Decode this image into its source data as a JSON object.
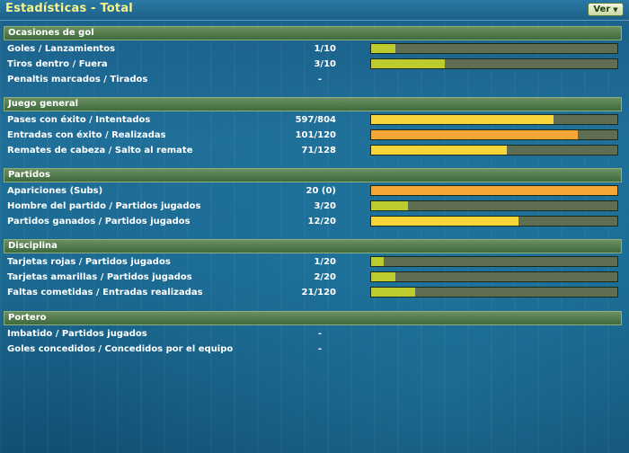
{
  "title": "Estadísticas - Total",
  "ver_button": {
    "label": "Ver",
    "icon": "chevron-down-icon"
  },
  "sections": [
    {
      "header": "Ocasiones de gol",
      "rows": [
        {
          "label": "Goles / Lanzamientos",
          "value": "1/10",
          "fill_pct": 10,
          "color": "#bccb2e"
        },
        {
          "label": "Tiros dentro / Fuera",
          "value": "3/10",
          "fill_pct": 30,
          "color": "#bccb2e"
        },
        {
          "label": "Penaltis marcados / Tirados",
          "value": "-",
          "fill_pct": null
        }
      ]
    },
    {
      "header": "Juego general",
      "rows": [
        {
          "label": "Pases con éxito / Intentados",
          "value": "597/804",
          "fill_pct": 74,
          "color": "#f6d63a"
        },
        {
          "label": "Entradas con éxito / Realizadas",
          "value": "101/120",
          "fill_pct": 84,
          "color": "#f6a634"
        },
        {
          "label": "Remates de cabeza / Salto al remate",
          "value": "71/128",
          "fill_pct": 55,
          "color": "#f6d63a"
        }
      ]
    },
    {
      "header": "Partidos",
      "rows": [
        {
          "label": "Apariciones (Subs)",
          "value": "20 (0)",
          "fill_pct": 100,
          "color": "#f6a634"
        },
        {
          "label": "Hombre del partido / Partidos jugados",
          "value": "3/20",
          "fill_pct": 15,
          "color": "#bccb2e"
        },
        {
          "label": "Partidos ganados / Partidos jugados",
          "value": "12/20",
          "fill_pct": 60,
          "color": "#f6d63a"
        }
      ]
    },
    {
      "header": "Disciplina",
      "rows": [
        {
          "label": "Tarjetas rojas / Partidos jugados",
          "value": "1/20",
          "fill_pct": 5,
          "color": "#bccb2e"
        },
        {
          "label": "Tarjetas amarillas / Partidos jugados",
          "value": "2/20",
          "fill_pct": 10,
          "color": "#bccb2e"
        },
        {
          "label": "Faltas cometidas / Entradas realizadas",
          "value": "21/120",
          "fill_pct": 18,
          "color": "#bccb2e"
        }
      ]
    },
    {
      "header": "Portero",
      "rows": [
        {
          "label": "Imbatido / Partidos jugados",
          "value": "-",
          "fill_pct": null
        },
        {
          "label": "Goles concedidos / Concedidos por el equipo",
          "value": "-",
          "fill_pct": null
        }
      ]
    }
  ]
}
